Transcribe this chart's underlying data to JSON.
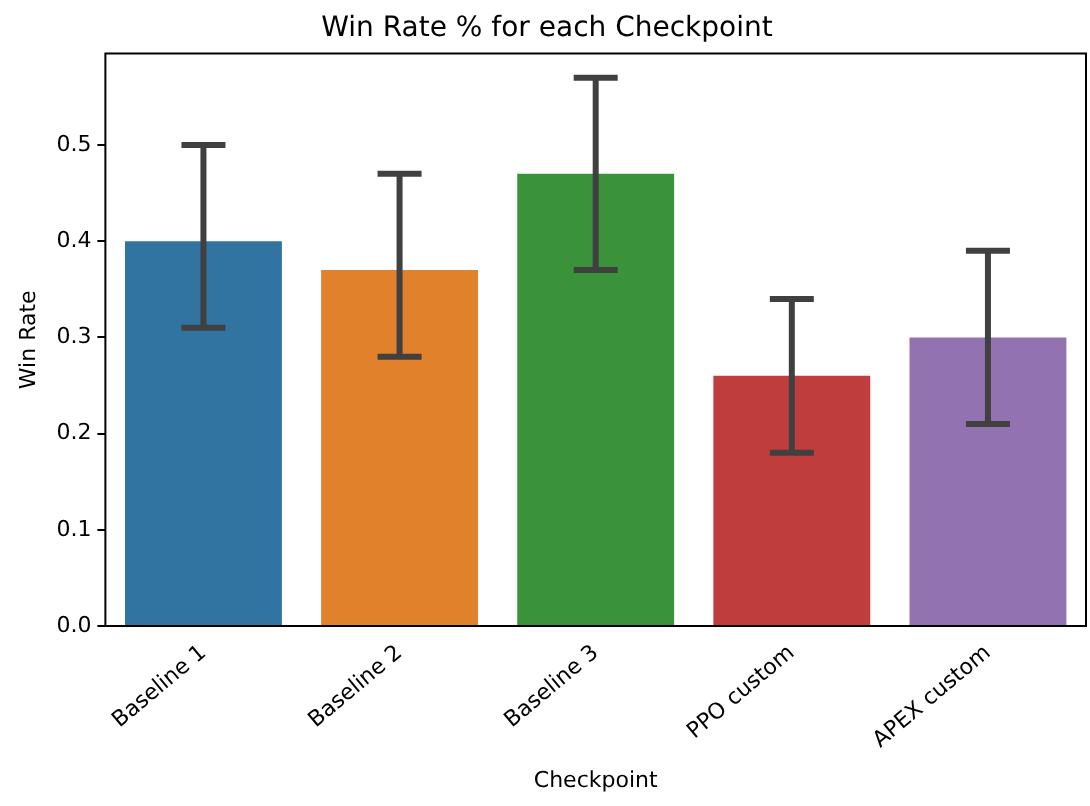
{
  "chart_data": {
    "type": "bar",
    "title": "Win Rate % for each Checkpoint",
    "xlabel": "Checkpoint",
    "ylabel": "Win Rate",
    "categories": [
      "Baseline 1",
      "Baseline 2",
      "Baseline 3",
      "PPO custom",
      "APEX custom"
    ],
    "values": [
      0.4,
      0.37,
      0.47,
      0.26,
      0.3
    ],
    "colors": [
      "#3274a1",
      "#e1812c",
      "#3a923a",
      "#c03d3e",
      "#9372b2"
    ],
    "errors": [
      [
        0.31,
        0.5
      ],
      [
        0.28,
        0.47
      ],
      [
        0.37,
        0.57
      ],
      [
        0.18,
        0.34
      ],
      [
        0.21,
        0.39
      ]
    ],
    "ylim": [
      0,
      0.595
    ],
    "yticks": [
      {
        "value": 0,
        "label": "0.0"
      },
      0.1,
      0.2,
      0.3,
      0.4,
      0.5
    ],
    "grid": false,
    "legend": false
  }
}
